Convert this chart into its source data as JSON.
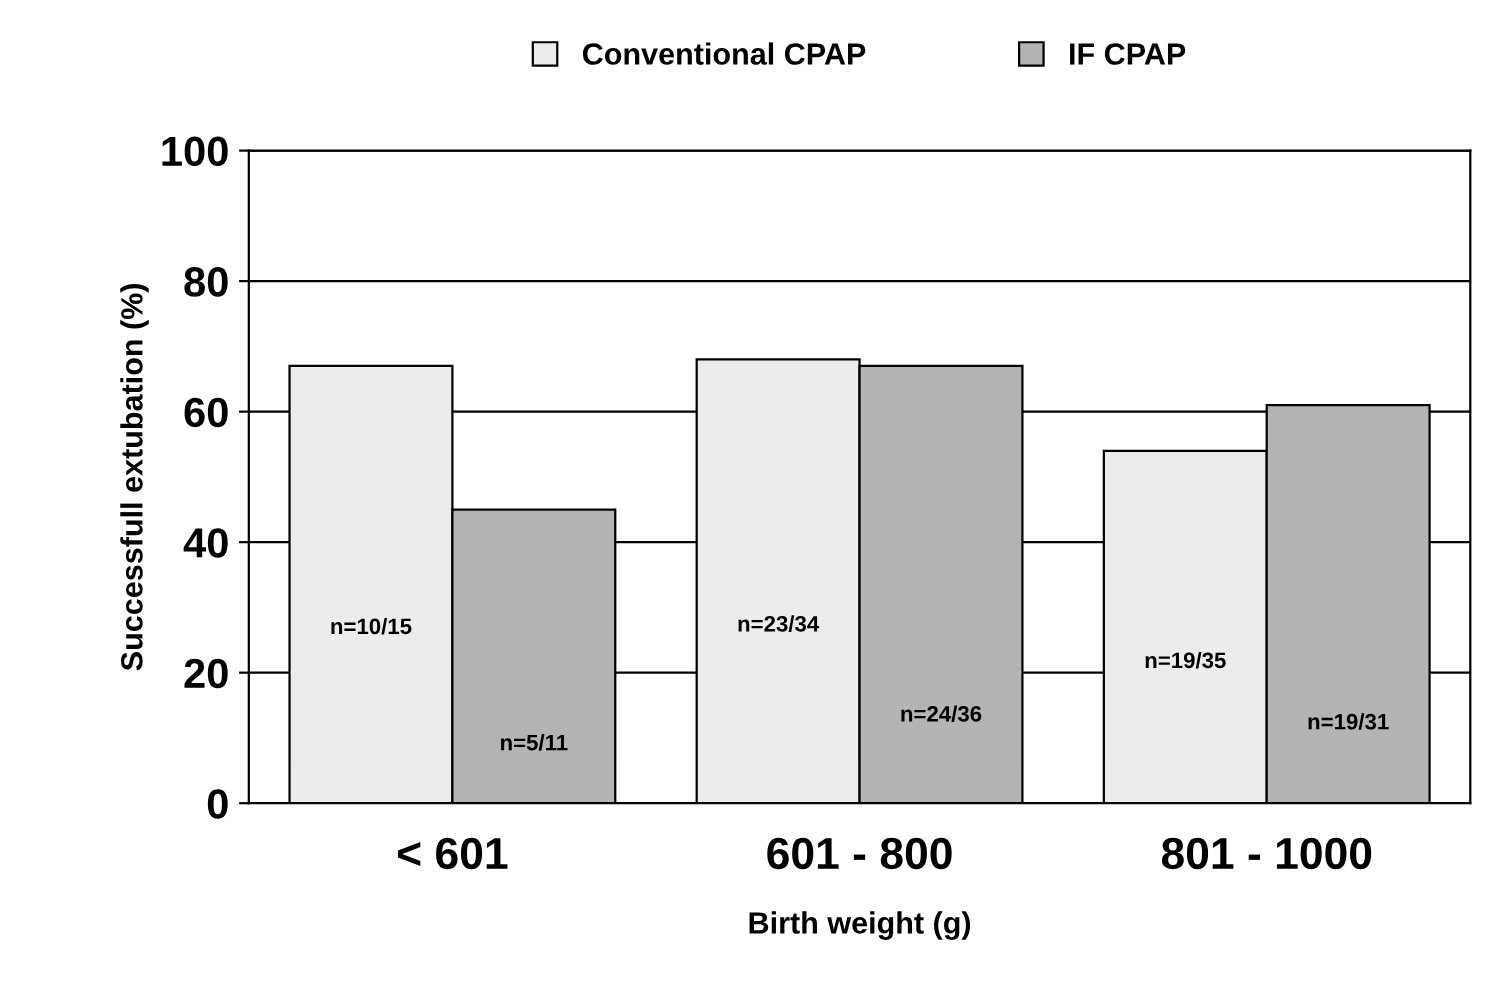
{
  "chart_data": {
    "type": "bar",
    "xlabel": "Birth weight (g)",
    "ylabel": "Successfull extubation (%)",
    "categories": [
      "< 601",
      "601 - 800",
      "801 - 1000"
    ],
    "series": [
      {
        "name": "Conventional CPAP",
        "color": "#ececec",
        "values": [
          67,
          68,
          54
        ],
        "value_labels": [
          "n=10/15",
          "n=23/34",
          "n=19/35"
        ]
      },
      {
        "name": "IF CPAP",
        "color": "#b4b4b4",
        "values": [
          45,
          67,
          61
        ],
        "value_labels": [
          "n=5/11",
          "n=24/36",
          "n=19/31"
        ]
      }
    ],
    "ylim": [
      0,
      100
    ],
    "yticks": [
      0,
      20,
      40,
      60,
      80,
      100
    ],
    "grid": "y",
    "legend": "top"
  }
}
